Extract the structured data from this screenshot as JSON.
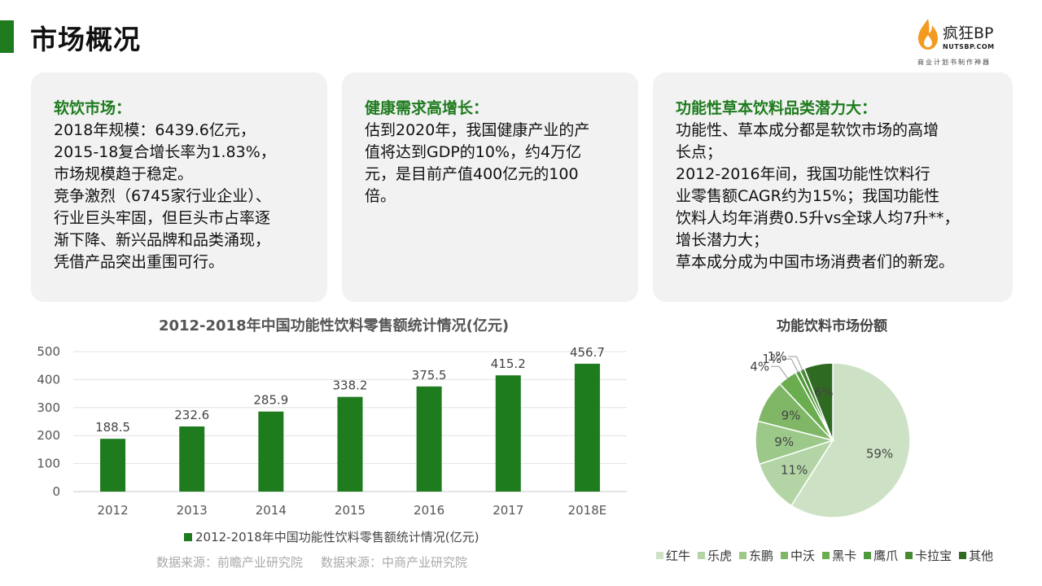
{
  "header": {
    "title": "市场概况"
  },
  "logo": {
    "name": "疯狂BP",
    "url": "NUTSBP.COM",
    "tagline": "商业计划书制作神器"
  },
  "cards": [
    {
      "title": "软饮市场：",
      "lines": [
        "2018年规模：6439.6亿元，",
        "2015-18复合增长率为1.83%，",
        "市场规模趋于稳定。",
        "竞争激烈（6745家行业企业）、",
        "行业巨头牢固，但巨头市占率逐",
        "渐下降、新兴品牌和品类涌现，",
        "凭借产品突出重围可行。"
      ]
    },
    {
      "title": "健康需求高增长：",
      "lines": [
        "估到2020年，我国健康产业的产",
        "值将达到GDP的10%，约4万亿",
        "元，是目前产值400亿元的100",
        "倍。"
      ]
    },
    {
      "title": "功能性草本饮料品类潜力大：",
      "lines": [
        "功能性、草本成分都是软饮市场的高增",
        "长点；",
        "2012-2016年间，我国功能性饮料行",
        "业零售额CAGR约为15%；我国功能性",
        "饮料人均年消费0.5升vs全球人均7升**，",
        "增长潜力大；",
        "草本成分成为中国市场消费者们的新宠。"
      ]
    }
  ],
  "sources": [
    "数据来源：前瞻产业研究院",
    "数据来源：中商产业研究院"
  ],
  "chart_data": [
    {
      "type": "bar",
      "title": "2012-2018年中国功能性饮料零售额统计情况(亿元)",
      "categories": [
        "2012",
        "2013",
        "2014",
        "2015",
        "2016",
        "2017",
        "2018E"
      ],
      "series": [
        {
          "name": "2012-2018年中国功能性饮料零售额统计情况(亿元)",
          "values": [
            188.5,
            232.6,
            285.9,
            338.2,
            375.5,
            415.2,
            456.7
          ],
          "color": "#1e7b1e"
        }
      ],
      "value_labels": [
        "188.5",
        "232.6",
        "285.9",
        "338.2",
        "375.5",
        "415.2",
        "456.7"
      ],
      "yticks": [
        "0",
        "100",
        "200",
        "300",
        "400",
        "500"
      ],
      "ylim": [
        0,
        500
      ],
      "grid": true,
      "legend_position": "bottom"
    },
    {
      "type": "pie",
      "title": "功能饮料市场份额",
      "labels": [
        "红牛",
        "乐虎",
        "东鹏",
        "中沃",
        "黑卡",
        "鹰爪",
        "卡拉宝",
        "其他"
      ],
      "values": [
        59,
        11,
        9,
        9,
        4,
        1,
        1,
        6
      ],
      "value_labels": [
        "59%",
        "11%",
        "9%",
        "9%",
        "4%",
        "1%",
        "1%",
        "6%"
      ],
      "colors": [
        "#cde2c4",
        "#b3d5a6",
        "#9cc88a",
        "#80b767",
        "#6aad4f",
        "#4f9a3a",
        "#478a33",
        "#2f6a22"
      ],
      "legend_position": "bottom"
    }
  ]
}
